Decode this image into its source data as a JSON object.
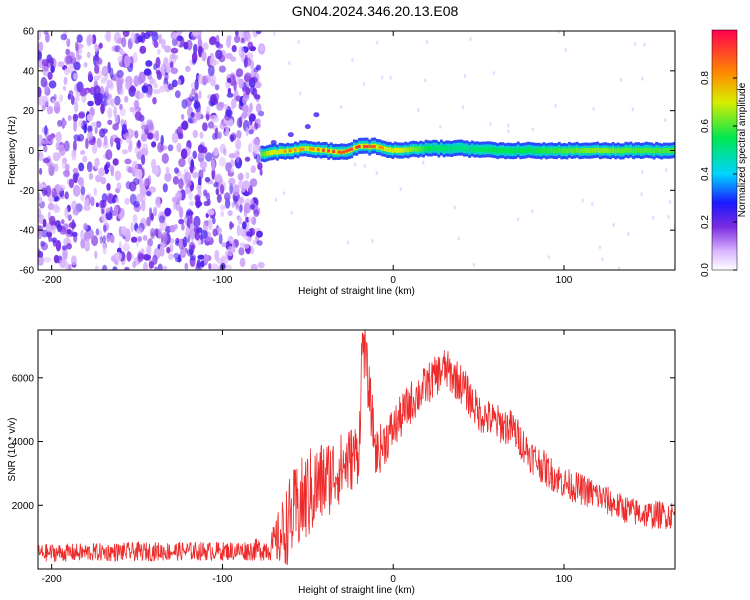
{
  "title": "GN04.2024.346.20.13.E08",
  "colors": {
    "snr_line": "#ee2a2a",
    "frame": "#000000",
    "noise": "#7a2be0"
  },
  "colorbar": {
    "label": "Normalized spectral amplitude",
    "ticks": [
      0.0,
      0.2,
      0.4,
      0.6,
      0.8
    ],
    "tick_labels": [
      "0.0",
      "0.2",
      "0.4",
      "0.6",
      "0.8"
    ],
    "range": [
      0,
      1
    ]
  },
  "chart_data": [
    {
      "type": "heatmap",
      "xlabel": "Height of straight line (km)",
      "ylabel": "Frequency (Hz)",
      "xlim": [
        -208,
        165
      ],
      "ylim": [
        -60,
        60
      ],
      "xticks": [
        -200,
        -100,
        0,
        100
      ],
      "xtick_labels": [
        "-200",
        "-100",
        "0",
        "100"
      ],
      "yticks": [
        60,
        40,
        20,
        0,
        -20,
        -40,
        -60
      ],
      "ytick_labels": [
        "60",
        "40",
        "20",
        "0",
        "-20",
        "-40",
        "-60"
      ],
      "noise_region_x": [
        -208,
        -77
      ],
      "ridge": {
        "x": [
          -77,
          -70,
          -60,
          -50,
          -40,
          -30,
          -20,
          -10,
          0,
          20,
          40,
          60,
          80,
          100,
          120,
          140,
          165
        ],
        "y": [
          -2,
          -1,
          0,
          1,
          0,
          -1,
          2,
          2,
          0,
          1,
          1,
          0,
          0,
          0,
          0,
          0,
          0
        ],
        "amplitude": [
          0.6,
          0.75,
          0.85,
          0.8,
          0.95,
          0.9,
          0.95,
          0.85,
          0.75,
          0.55,
          0.5,
          0.55,
          0.55,
          0.6,
          0.65,
          0.6,
          0.6
        ]
      },
      "tails": [
        {
          "x": [
            -70,
            -60,
            -50,
            -45
          ],
          "y": [
            4,
            8,
            12,
            18
          ]
        }
      ]
    },
    {
      "type": "line",
      "xlabel": "Height of straight line (km)",
      "ylabel": "SNR (10 * v/v)",
      "xlim": [
        -208,
        165
      ],
      "ylim": [
        0,
        7500
      ],
      "xticks": [
        -200,
        -100,
        0,
        100
      ],
      "xtick_labels": [
        "-200",
        "-100",
        "0",
        "100"
      ],
      "yticks": [
        2000,
        4000,
        6000
      ],
      "ytick_labels": [
        "2000",
        "4000",
        "6000"
      ],
      "series": [
        {
          "x": [
            -208,
            -180,
            -150,
            -120,
            -100,
            -85,
            -72,
            -65,
            -60,
            -50,
            -40,
            -30,
            -20,
            -18,
            -10,
            0,
            10,
            20,
            30,
            40,
            50,
            60,
            70,
            80,
            90,
            100,
            110,
            120,
            130,
            140,
            150,
            165
          ],
          "y": [
            500,
            520,
            540,
            560,
            560,
            580,
            650,
            1100,
            1600,
            2300,
            2800,
            3200,
            3700,
            7400,
            3600,
            4400,
            5200,
            5800,
            6300,
            5800,
            4900,
            4600,
            4400,
            3600,
            3100,
            2700,
            2500,
            2300,
            2000,
            1800,
            1700,
            1700
          ],
          "spread": [
            280,
            290,
            300,
            300,
            300,
            320,
            400,
            1100,
            1400,
            1500,
            1300,
            1100,
            1000,
            1000,
            800,
            700,
            700,
            650,
            650,
            650,
            600,
            600,
            600,
            550,
            550,
            500,
            500,
            500,
            450,
            450,
            450,
            450
          ]
        }
      ]
    }
  ]
}
